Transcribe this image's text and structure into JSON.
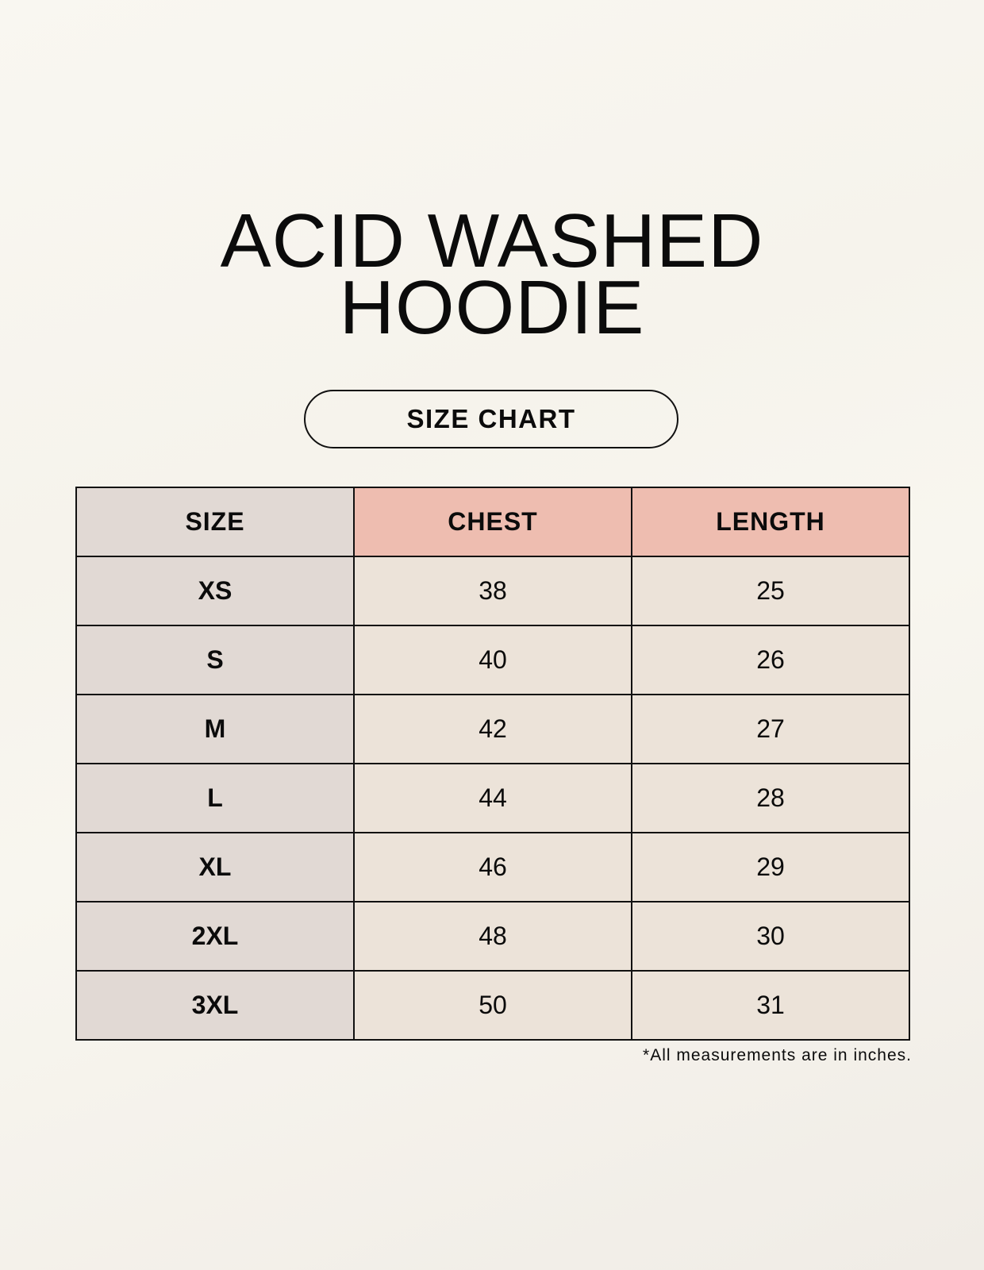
{
  "title": {
    "line1": "ACID WASHED",
    "line2": "HOODIE"
  },
  "subtitle": "SIZE CHART",
  "table": {
    "headers": [
      "SIZE",
      "CHEST",
      "LENGTH"
    ],
    "rows": [
      [
        "XS",
        "38",
        "25"
      ],
      [
        "S",
        "40",
        "26"
      ],
      [
        "M",
        "42",
        "27"
      ],
      [
        "L",
        "44",
        "28"
      ],
      [
        "XL",
        "46",
        "29"
      ],
      [
        "2XL",
        "48",
        "30"
      ],
      [
        "3XL",
        "50",
        "31"
      ]
    ]
  },
  "footnote": "*All measurements are in inches.",
  "colors": {
    "size_column": "#e1d9d4",
    "header_accent": "#eebdb0",
    "cell": "#ece3d9"
  }
}
